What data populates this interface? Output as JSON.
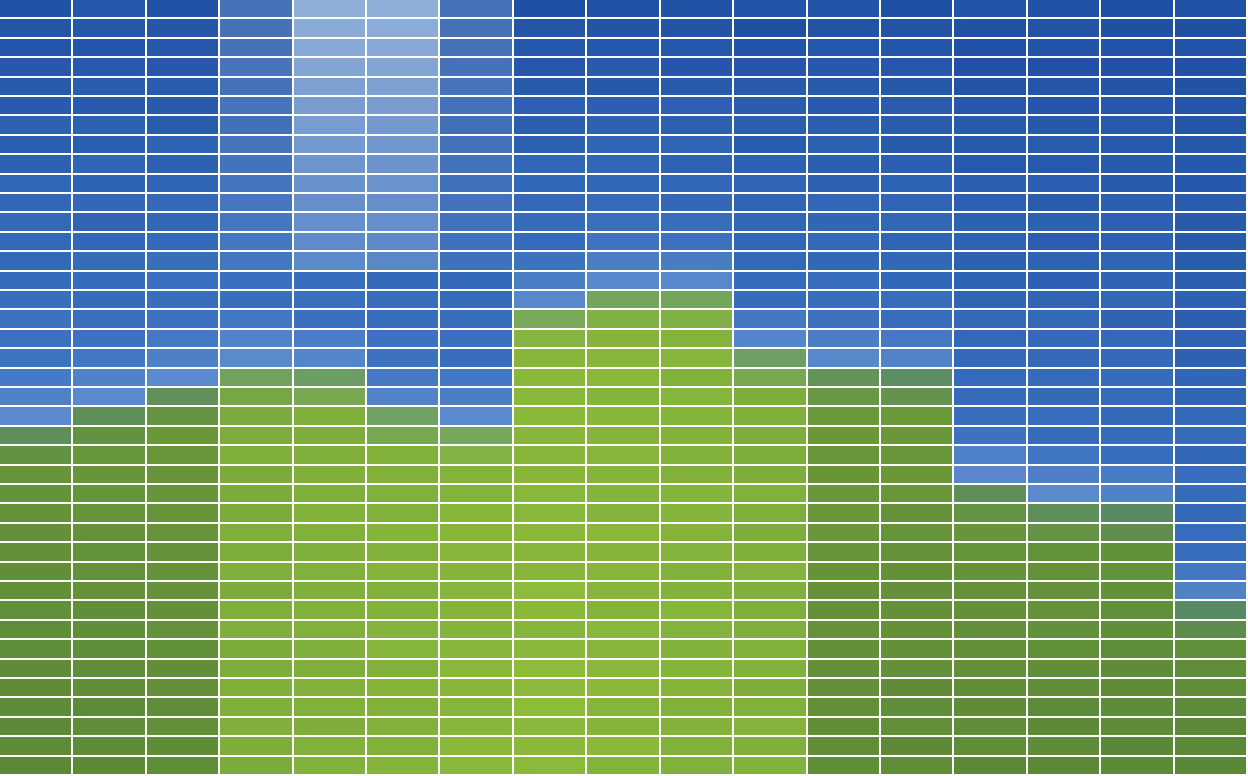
{
  "image": {
    "subject": "mosaic",
    "palette": {
      "grid_line": "#ffffff",
      "sky_deep": "#1f4fa3",
      "sky_mid": "#3f76c4",
      "sky_light": "#c4dbf2",
      "grass_light": "#8dbb3a",
      "grass_mid": "#6e9e3d",
      "grass_dark": "#4f7a35"
    },
    "columns": 17,
    "rows": 40,
    "horizon_per_column": [
      21.5,
      20.5,
      19.5,
      18.5,
      19,
      21,
      21.5,
      15.5,
      14.5,
      14.5,
      18,
      18.5,
      19,
      24.5,
      25.5,
      26,
      31
    ],
    "cloud_column": 4.5,
    "cloud_top_row": 0,
    "cloud_bottom_row": 13
  }
}
